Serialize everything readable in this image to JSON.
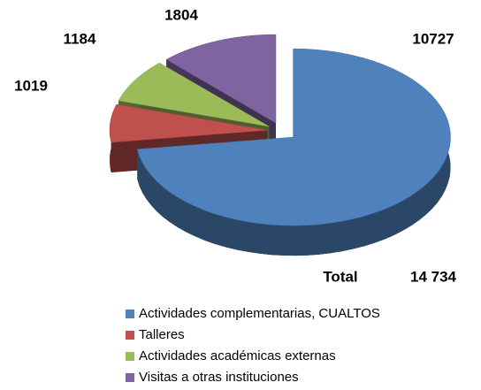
{
  "chart_data": {
    "type": "pie3d",
    "categories": [
      "Actividades complementarias, CUALTOS",
      "Talleres",
      "Actividades académicas externas",
      "Visitas a otras instituciones"
    ],
    "values": [
      10727,
      1019,
      1184,
      1804
    ],
    "colors": [
      "#4f81bd",
      "#c0504d",
      "#9bbb59",
      "#8064a2"
    ],
    "total_label": "Total",
    "total": 14734,
    "total_value_label": "14 734",
    "legend": "bottom"
  }
}
